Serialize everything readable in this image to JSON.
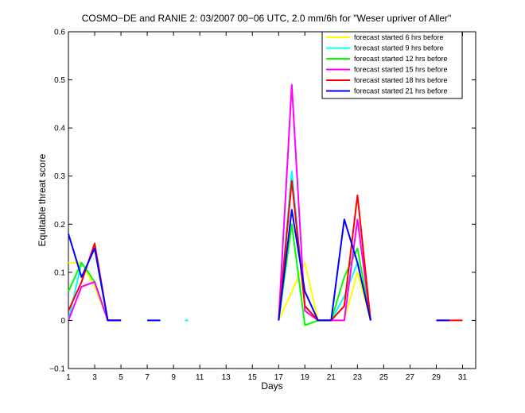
{
  "chart_data": {
    "type": "line",
    "title": "COSMO−DE and RANIE 2: 03/2007 00−06 UTC, 2.0 mm/6h for \"Weser upriver of Aller\"",
    "xlabel": "Days",
    "ylabel": "Equitable threat score",
    "xlim": [
      1,
      32
    ],
    "ylim": [
      -0.1,
      0.6
    ],
    "xticks": [
      1,
      3,
      5,
      7,
      9,
      11,
      13,
      15,
      17,
      19,
      21,
      23,
      25,
      27,
      29,
      31
    ],
    "xtick_labels": [
      "1",
      "3",
      "5",
      "7",
      "9",
      "11",
      "13",
      "15",
      "17",
      "19",
      "21",
      "23",
      "25",
      "27",
      "29",
      "31"
    ],
    "yticks": [
      -0.1,
      0,
      0.1,
      0.2,
      0.3,
      0.4,
      0.5,
      0.6
    ],
    "ytick_labels": [
      "−0.1",
      "0",
      "0.1",
      "0.2",
      "0.3",
      "0.4",
      "0.5",
      "0.6"
    ],
    "legend_position": "top-right",
    "grid": false,
    "series": [
      {
        "name": "forecast started 6 hrs before",
        "color": "#ffff00",
        "segments": [
          [
            [
              1,
              0.12
            ],
            [
              2,
              0.12
            ],
            [
              3,
              0.07
            ],
            [
              4,
              0
            ],
            [
              5,
              0
            ]
          ],
          [
            [
              17,
              0
            ],
            [
              18,
              0.06
            ],
            [
              19,
              0.12
            ],
            [
              20,
              0
            ],
            [
              21,
              0
            ],
            [
              22,
              0
            ],
            [
              23,
              0.1
            ],
            [
              24,
              0
            ]
          ]
        ]
      },
      {
        "name": "forecast started 9 hrs before",
        "color": "#00ffff",
        "segments": [
          [
            [
              1,
              0
            ],
            [
              2,
              0.12
            ],
            [
              3,
              0.08
            ],
            [
              4,
              0
            ],
            [
              5,
              0
            ]
          ],
          [
            [
              10,
              0
            ]
          ],
          [
            [
              17,
              0
            ],
            [
              18,
              0.31
            ],
            [
              19,
              0.03
            ],
            [
              20,
              0
            ],
            [
              21,
              0
            ],
            [
              22,
              0.05
            ],
            [
              23,
              0.12
            ],
            [
              24,
              0
            ]
          ]
        ]
      },
      {
        "name": "forecast started 12 hrs before",
        "color": "#00ff00",
        "segments": [
          [
            [
              1,
              0.06
            ],
            [
              2,
              0.12
            ],
            [
              3,
              0.08
            ],
            [
              4,
              0
            ],
            [
              5,
              0
            ]
          ],
          [
            [
              17,
              0
            ],
            [
              18,
              0.2
            ],
            [
              19,
              -0.01
            ],
            [
              20,
              0
            ],
            [
              21,
              0
            ],
            [
              22,
              0.09
            ],
            [
              23,
              0.15
            ],
            [
              24,
              0
            ]
          ]
        ]
      },
      {
        "name": "forecast started 15 hrs before",
        "color": "#ff00ff",
        "segments": [
          [
            [
              1,
              0
            ],
            [
              2,
              0.07
            ],
            [
              3,
              0.08
            ],
            [
              4,
              0
            ],
            [
              5,
              0
            ]
          ],
          [
            [
              17,
              0
            ],
            [
              18,
              0.49
            ],
            [
              19,
              0.02
            ],
            [
              20,
              0
            ],
            [
              21,
              0
            ],
            [
              22,
              0
            ],
            [
              23,
              0.21
            ],
            [
              24,
              0
            ]
          ]
        ]
      },
      {
        "name": "forecast started 18 hrs before",
        "color": "#ff0000",
        "segments": [
          [
            [
              1,
              0.02
            ],
            [
              2,
              0.08
            ],
            [
              3,
              0.16
            ],
            [
              4,
              0
            ],
            [
              5,
              0
            ]
          ],
          [
            [
              17,
              0
            ],
            [
              18,
              0.29
            ],
            [
              19,
              0.03
            ],
            [
              20,
              0
            ],
            [
              21,
              0
            ],
            [
              22,
              0.03
            ],
            [
              23,
              0.26
            ],
            [
              24,
              0
            ]
          ],
          [
            [
              29,
              0
            ],
            [
              31,
              0
            ]
          ]
        ]
      },
      {
        "name": "forecast started 21 hrs before",
        "color": "#0000ff",
        "segments": [
          [
            [
              1,
              0.18
            ],
            [
              2,
              0.09
            ],
            [
              3,
              0.15
            ],
            [
              4,
              0
            ],
            [
              5,
              0
            ]
          ],
          [
            [
              7,
              0
            ],
            [
              8,
              0
            ]
          ],
          [
            [
              17,
              0
            ],
            [
              18,
              0.23
            ],
            [
              19,
              0.06
            ],
            [
              20,
              0
            ],
            [
              21,
              0
            ],
            [
              22,
              0.21
            ],
            [
              23,
              0.12
            ],
            [
              24,
              0
            ]
          ],
          [
            [
              29,
              0
            ],
            [
              30,
              0
            ]
          ]
        ]
      }
    ]
  }
}
